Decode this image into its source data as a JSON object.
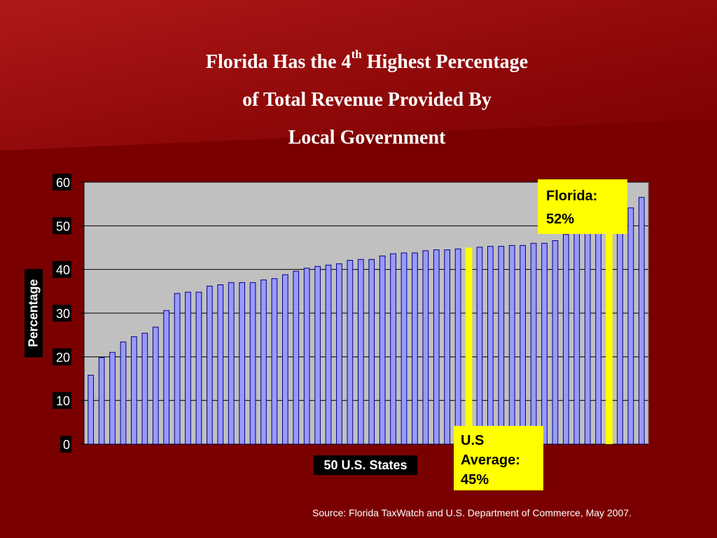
{
  "title": {
    "line1_pre": "Florida Has the 4",
    "line1_sup": "th",
    "line1_post": " Highest Percentage",
    "line2": "of Total Revenue Provided By",
    "line3": "Local Government"
  },
  "annotations": {
    "florida_label": "Florida:",
    "florida_value": "52%",
    "us_label_1": "U.S",
    "us_label_2": "Average:",
    "us_value": "45%"
  },
  "source": "Source: Florida TaxWatch and U.S. Department of Commerce, May 2007.",
  "colors": {
    "background": "#7a0000",
    "plot_area": "#c0c0c0",
    "bar_fill": "#9999ff",
    "bar_stroke": "#000080",
    "highlight": "#ffff00"
  },
  "chart_data": {
    "type": "bar",
    "xlabel": "50 U.S. States",
    "ylabel": "Percentage",
    "ylim": [
      0,
      60
    ],
    "yticks": [
      0,
      10,
      20,
      30,
      40,
      50,
      60
    ],
    "grid": true,
    "values": [
      15.8,
      19.8,
      21.0,
      23.4,
      24.6,
      25.4,
      26.8,
      30.6,
      34.5,
      34.8,
      34.8,
      36.2,
      36.5,
      37.0,
      37.0,
      37.0,
      37.6,
      37.9,
      38.8,
      39.6,
      40.3,
      40.7,
      41.0,
      41.3,
      42.1,
      42.3,
      42.3,
      43.1,
      43.6,
      43.8,
      43.8,
      44.3,
      44.5,
      44.5,
      44.7,
      45.1,
      45.3,
      45.3,
      45.5,
      45.5,
      46.0,
      46.0,
      46.6,
      48.0,
      48.9,
      49.3,
      50.5,
      51.5,
      54.1,
      56.5
    ],
    "highlights": [
      {
        "label": "U.S Average",
        "value": 45,
        "after_index": 34
      },
      {
        "label": "Florida",
        "value": 52,
        "after_index": 46
      }
    ]
  }
}
